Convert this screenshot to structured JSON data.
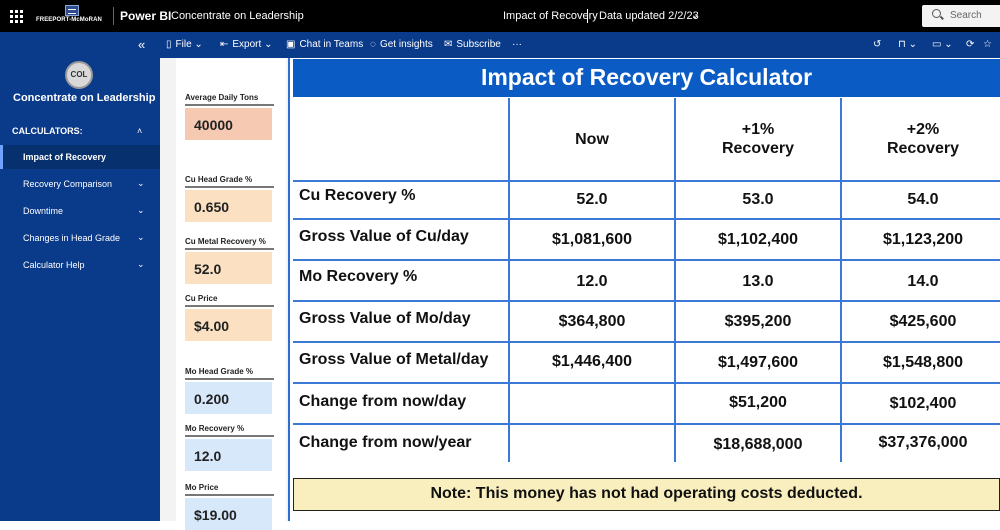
{
  "topbar": {
    "logo_text": "FREEPORT-McMoRAN",
    "app_name": "Power BI",
    "report_name": "Concentrate on Leadership",
    "page_title": "Impact of Recovery",
    "data_updated": "Data updated 2/2/23",
    "search_placeholder": "Search"
  },
  "toolbar": {
    "file": "File",
    "export": "Export",
    "chat": "Chat in Teams",
    "insights": "Get insights",
    "subscribe": "Subscribe",
    "more": "···"
  },
  "sidebar": {
    "badge": "COL",
    "title": "Concentrate on Leadership",
    "section": "CALCULATORS:",
    "items": [
      {
        "label": "Impact of Recovery"
      },
      {
        "label": "Recovery Comparison"
      },
      {
        "label": "Downtime"
      },
      {
        "label": "Changes in Head Grade"
      },
      {
        "label": "Calculator Help"
      }
    ]
  },
  "inputs": [
    {
      "label": "Average Daily Tons",
      "value": "40000"
    },
    {
      "label": "Cu Head Grade %",
      "value": "0.650"
    },
    {
      "label": "Cu Metal Recovery %",
      "value": "52.0"
    },
    {
      "label": "Cu Price",
      "value": "$4.00"
    },
    {
      "label": "Mo Head Grade %",
      "value": "0.200"
    },
    {
      "label": "Mo Recovery %",
      "value": "12.0"
    },
    {
      "label": "Mo Price",
      "value": "$19.00"
    }
  ],
  "main": {
    "title": "Impact of Recovery Calculator",
    "columns": [
      {
        "line1": "Now",
        "line2": ""
      },
      {
        "line1": "+1%",
        "line2": "Recovery"
      },
      {
        "line1": "+2%",
        "line2": "Recovery"
      }
    ],
    "rows": [
      {
        "label": "Cu Recovery %",
        "values": [
          "52.0",
          "53.0",
          "54.0"
        ]
      },
      {
        "label": "Gross Value of Cu/day",
        "values": [
          "$1,081,600",
          "$1,102,400",
          "$1,123,200"
        ]
      },
      {
        "label": "Mo Recovery %",
        "values": [
          "12.0",
          "13.0",
          "14.0"
        ]
      },
      {
        "label": "Gross Value of Mo/day",
        "values": [
          "$364,800",
          "$395,200",
          "$425,600"
        ]
      },
      {
        "label": "Gross Value of Metal/day",
        "values": [
          "$1,446,400",
          "$1,497,600",
          "$1,548,800"
        ]
      },
      {
        "label": "Change from now/day",
        "values": [
          "",
          "$51,200",
          "$102,400"
        ]
      },
      {
        "label": "Change from now/year",
        "values": [
          "",
          "$18,688,000",
          "$37,376,000"
        ]
      }
    ],
    "note": "Note: This money has not had operating costs deducted."
  }
}
